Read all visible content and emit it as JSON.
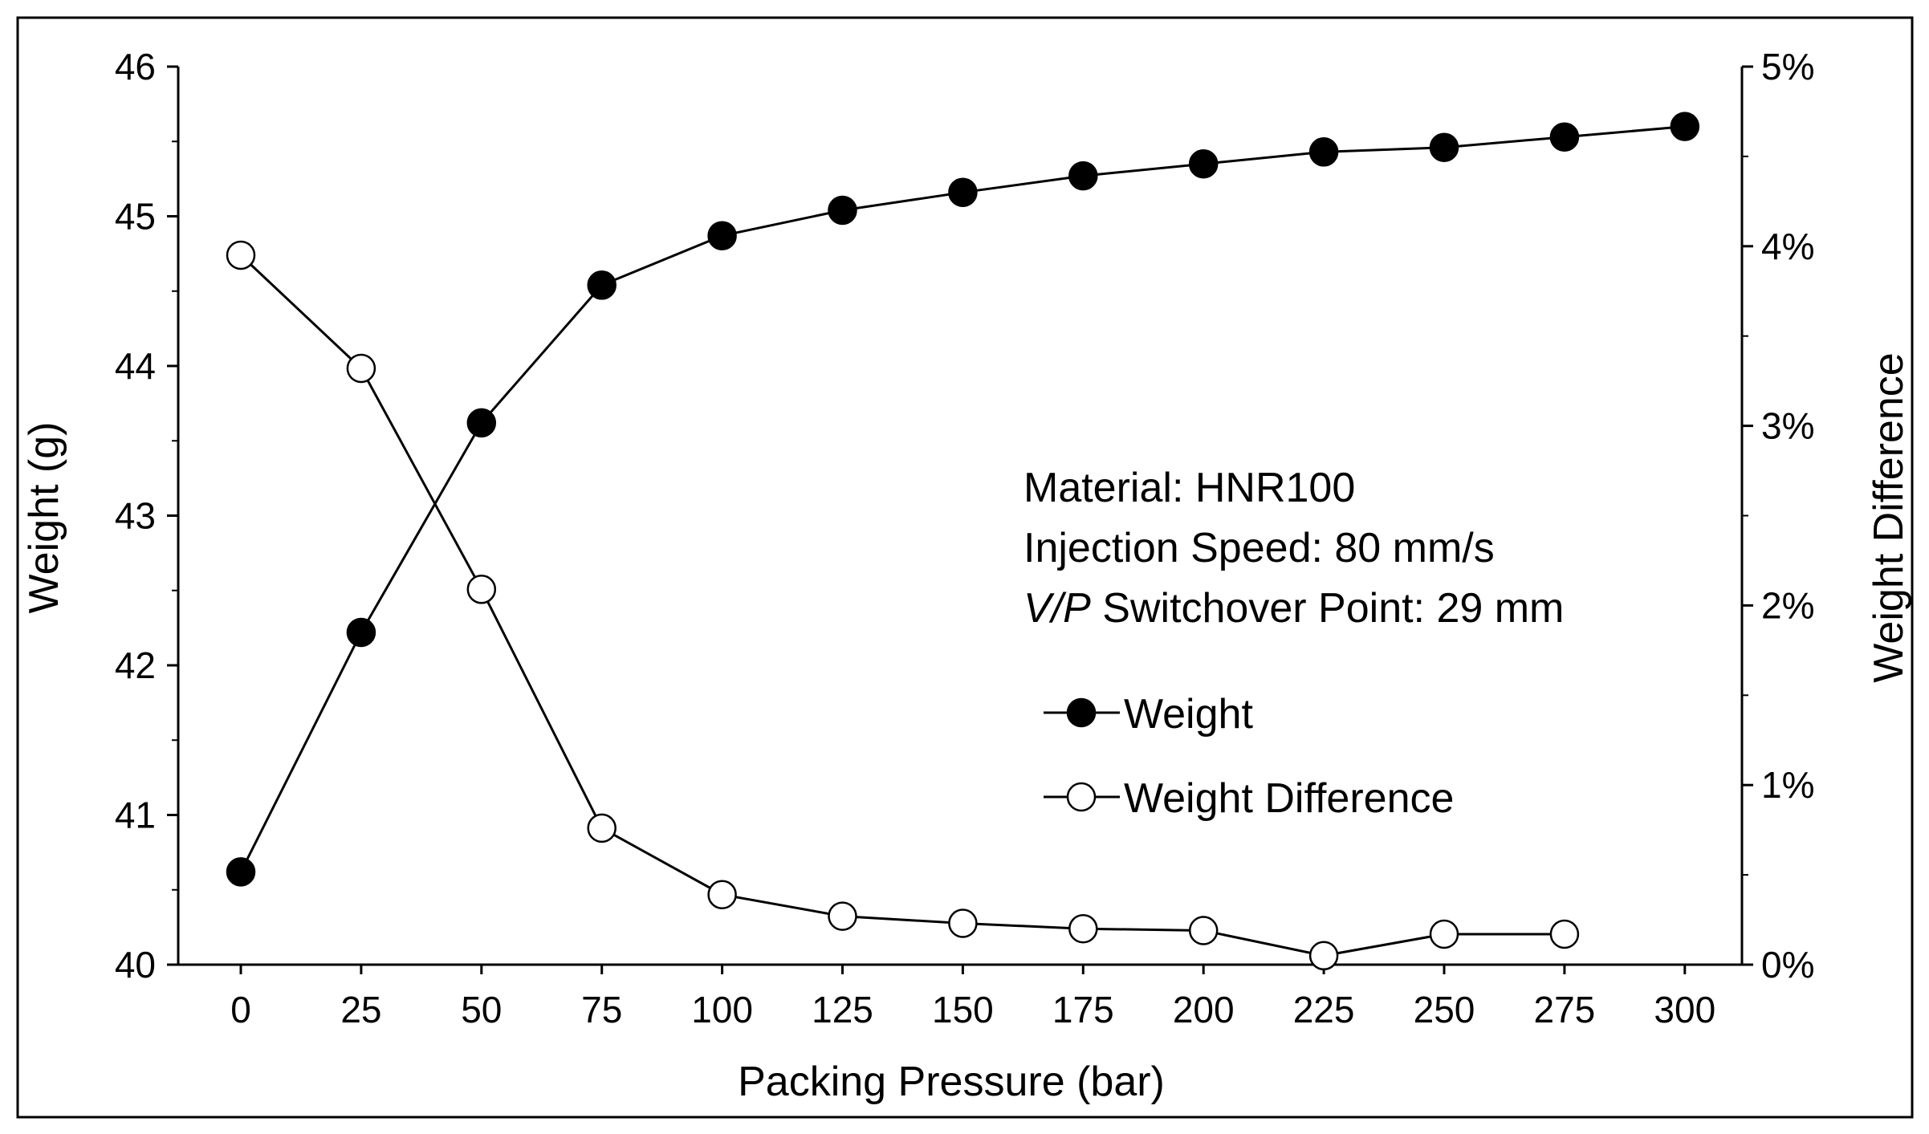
{
  "chart_data": {
    "type": "line",
    "title": "",
    "xlabel": "Packing Pressure (bar)",
    "ylabel": "Weight (g)",
    "y2label": "Weight Difference",
    "x": [
      0,
      25,
      50,
      75,
      100,
      125,
      150,
      175,
      200,
      225,
      250,
      275,
      300
    ],
    "x_tick_labels": [
      "0",
      "25",
      "50",
      "75",
      "100",
      "125",
      "150",
      "175",
      "200",
      "225",
      "250",
      "275",
      "300"
    ],
    "ylim": [
      40,
      46
    ],
    "y_tick_labels": [
      "40",
      "41",
      "42",
      "43",
      "44",
      "45",
      "46"
    ],
    "y2lim": [
      0,
      5
    ],
    "y2_tick_labels": [
      "0%",
      "1%",
      "2%",
      "3%",
      "4%",
      "5%"
    ],
    "series": [
      {
        "name": "Weight",
        "axis": "left",
        "marker": "filled-circle",
        "x": [
          0,
          25,
          50,
          75,
          100,
          125,
          150,
          175,
          200,
          225,
          250,
          275,
          300
        ],
        "values": [
          40.62,
          42.22,
          43.62,
          44.54,
          44.87,
          45.04,
          45.16,
          45.27,
          45.35,
          45.43,
          45.46,
          45.53,
          45.6
        ]
      },
      {
        "name": "Weight Difference",
        "axis": "right",
        "marker": "open-circle",
        "x": [
          0,
          25,
          50,
          75,
          100,
          125,
          150,
          175,
          200,
          225,
          250,
          275
        ],
        "values": [
          3.95,
          3.32,
          2.09,
          0.76,
          0.39,
          0.27,
          0.23,
          0.2,
          0.19,
          0.05,
          0.17,
          0.17
        ]
      }
    ],
    "annotations": [
      {
        "text": "Material: HNR100",
        "italic_prefix": ""
      },
      {
        "text": "Injection Speed: 80 mm/s",
        "italic_prefix": ""
      },
      {
        "text": " Switchover Point: 29 mm",
        "italic_prefix": "V/P"
      }
    ],
    "legend": {
      "placement": "right-middle",
      "entries": [
        "Weight",
        "Weight Difference"
      ]
    }
  }
}
